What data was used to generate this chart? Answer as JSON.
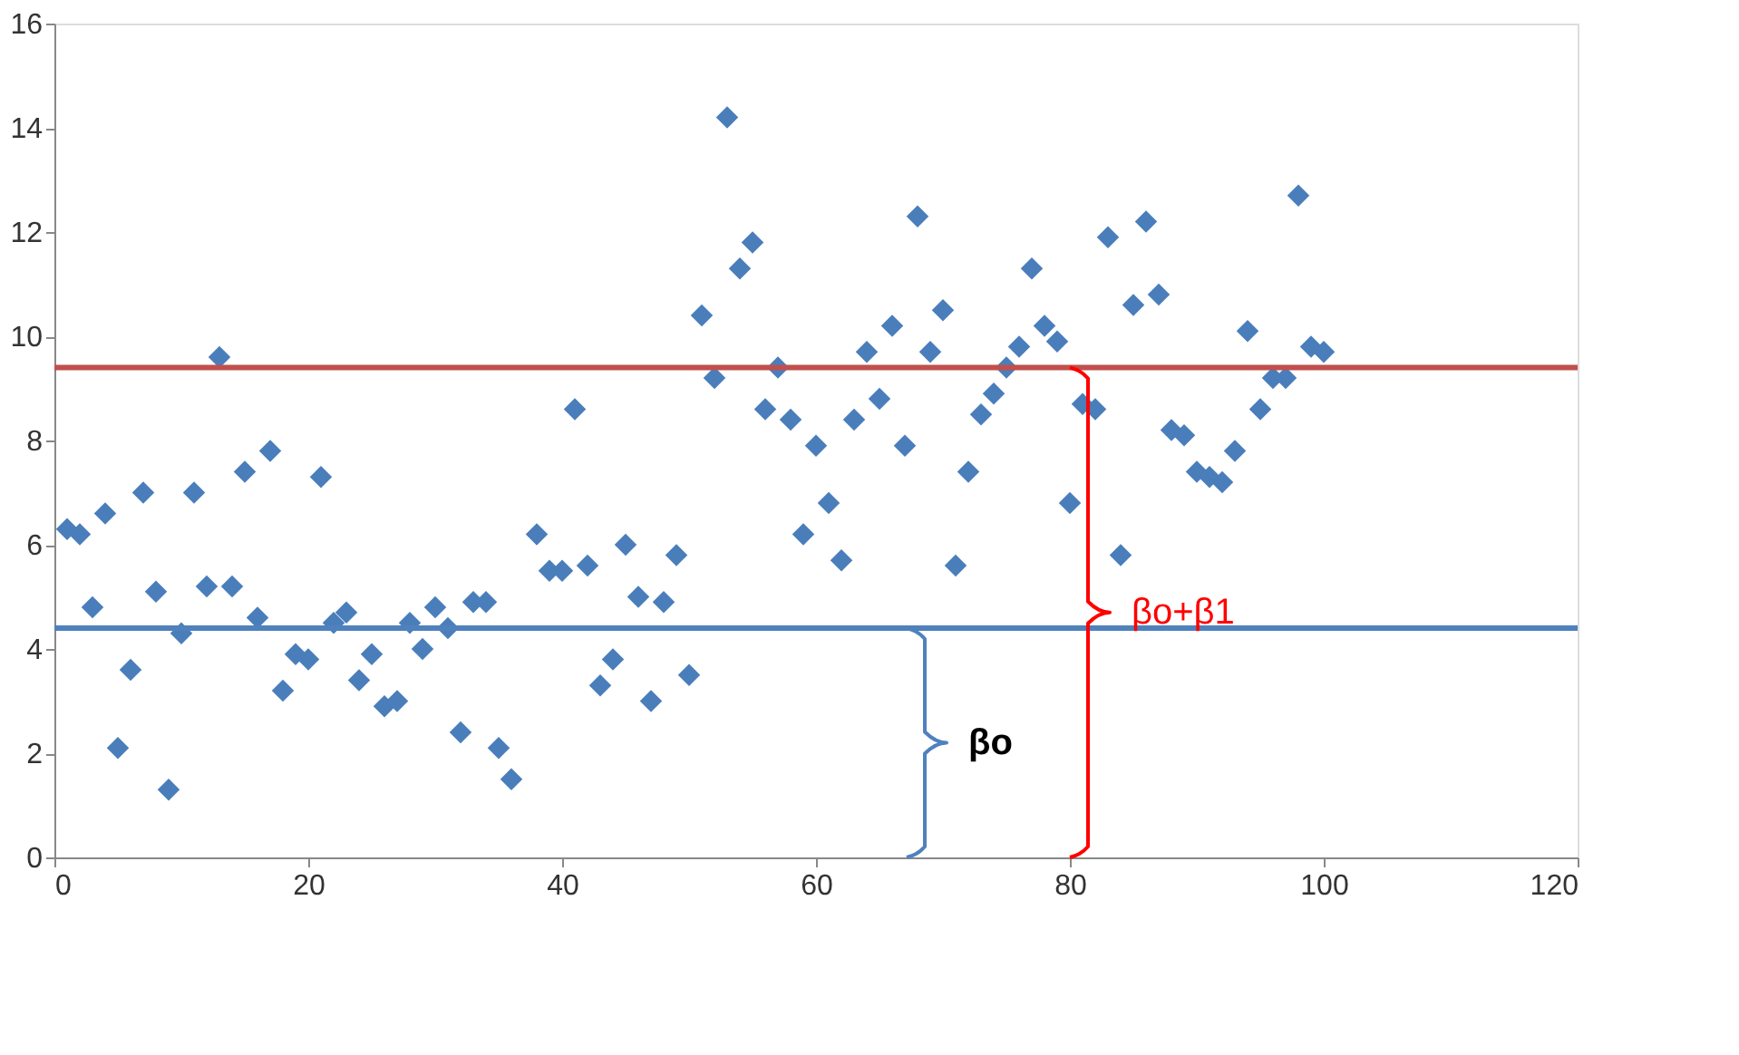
{
  "chart_data": {
    "type": "scatter",
    "marker": "diamond",
    "grid": false,
    "xlim": [
      0,
      120
    ],
    "xticks": [
      0,
      20,
      40,
      60,
      80,
      100,
      120
    ],
    "ylim": [
      0,
      16
    ],
    "yticks": [
      0,
      2,
      4,
      6,
      8,
      10,
      12,
      14,
      16
    ],
    "series": [
      {
        "color": "#4a7ebb",
        "x": [
          1,
          2,
          3,
          4,
          5,
          6,
          7,
          8,
          9,
          10,
          11,
          12,
          13,
          14,
          15,
          16,
          17,
          18,
          19,
          20,
          21,
          22,
          23,
          24,
          25,
          26,
          27,
          28,
          29,
          30,
          31,
          32,
          33,
          34,
          35,
          36,
          38,
          39,
          40,
          41,
          42,
          43,
          44,
          45,
          46,
          47,
          48,
          49,
          50,
          51,
          52,
          53,
          54,
          55,
          56,
          57,
          58,
          59,
          60,
          61,
          62,
          63,
          64,
          65,
          66,
          67,
          68,
          69,
          70,
          71,
          72,
          73,
          74,
          75,
          76,
          77,
          78,
          79,
          80,
          81,
          82,
          83,
          84,
          85,
          86,
          87,
          88,
          89,
          90,
          91,
          92,
          93,
          94,
          95,
          96,
          97,
          98,
          99,
          100
        ],
        "values": [
          6.3,
          6.2,
          4.8,
          6.6,
          2.1,
          3.6,
          7.0,
          5.1,
          1.3,
          4.3,
          7.0,
          5.2,
          9.6,
          5.2,
          7.4,
          4.6,
          7.8,
          3.2,
          3.9,
          3.8,
          7.3,
          4.5,
          4.7,
          3.4,
          3.9,
          2.9,
          3.0,
          4.5,
          4.0,
          4.8,
          4.4,
          2.4,
          4.9,
          4.9,
          2.1,
          1.5,
          6.2,
          5.5,
          5.5,
          8.6,
          5.6,
          3.3,
          3.8,
          6.0,
          5.0,
          3.0,
          4.9,
          5.8,
          3.5,
          10.4,
          9.2,
          14.2,
          11.3,
          11.8,
          8.6,
          9.4,
          8.4,
          6.2,
          7.9,
          6.8,
          5.7,
          8.4,
          9.7,
          8.8,
          10.2,
          7.9,
          12.3,
          9.7,
          10.5,
          5.6,
          7.4,
          8.5,
          8.9,
          9.4,
          9.8,
          11.3,
          10.2,
          9.9,
          6.8,
          8.7,
          8.6,
          11.9,
          5.8,
          10.6,
          12.2,
          10.8,
          8.2,
          8.1,
          7.4,
          7.3,
          7.2,
          7.8,
          10.1,
          8.6,
          9.2,
          9.2,
          12.7,
          9.8,
          9.7
        ]
      }
    ],
    "ref_lines": [
      {
        "axis": "y",
        "value": 4.4,
        "color": "#4f81bd",
        "line_style": "solid"
      },
      {
        "axis": "y",
        "value": 9.4,
        "color": "#c0504d",
        "line_style": "solid"
      }
    ],
    "annotations": [
      "βo",
      "βo+β1"
    ]
  }
}
